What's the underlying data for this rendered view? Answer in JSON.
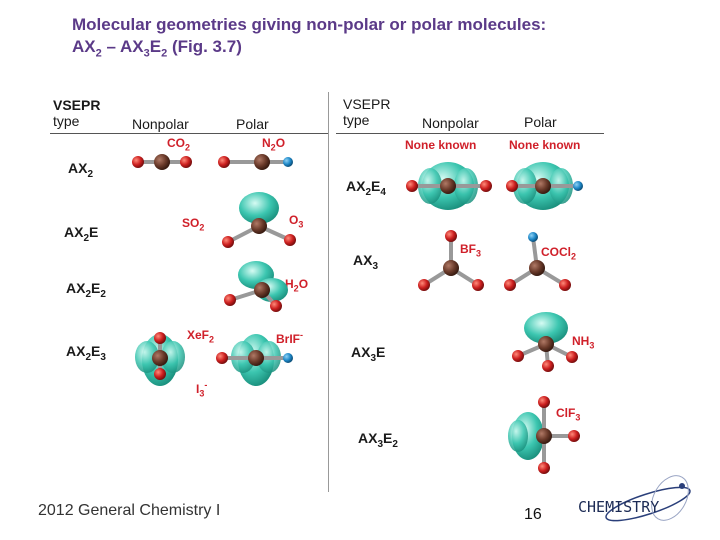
{
  "title": {
    "line1": "Molecular geometries giving non-polar or polar molecules:",
    "l2_a": "AX",
    "l2_a_sub": "2",
    "l2_b": " – AX",
    "l2_b_sub": "3",
    "l2_c": "E",
    "l2_c_sub": "2",
    "l2_d": " (Fig. 3.7)"
  },
  "left_header": {
    "vsepr": "VSEPR",
    "type": "type",
    "nonpolar": "Nonpolar",
    "polar": "Polar"
  },
  "right_header": {
    "vsepr": "VSEPR",
    "type": "type",
    "nonpolar": "Nonpolar",
    "polar": "Polar"
  },
  "left_rows": [
    {
      "t1": "AX",
      "s1": "2",
      "t2": "",
      "s2": ""
    },
    {
      "t1": "AX",
      "s1": "2",
      "t2": "E",
      "s2": ""
    },
    {
      "t1": "AX",
      "s1": "2",
      "t2": "E",
      "s2": "2"
    },
    {
      "t1": "AX",
      "s1": "2",
      "t2": "E",
      "s2": "3"
    }
  ],
  "right_rows": [
    {
      "t1": "AX",
      "s1": "2",
      "t2": "E",
      "s2": "4"
    },
    {
      "t1": "AX",
      "s1": "3",
      "t2": "",
      "s2": ""
    },
    {
      "t1": "AX",
      "s1": "3",
      "t2": "E",
      "s2": ""
    },
    {
      "t1": "AX",
      "s1": "3",
      "t2": "E",
      "s2": "2"
    }
  ],
  "molecules": {
    "co2": {
      "a": "CO",
      "b": "2"
    },
    "n2o": {
      "a": "N",
      "b": "2",
      "c": "O"
    },
    "so2": {
      "a": "SO",
      "b": "2"
    },
    "o3": {
      "a": "O",
      "b": "3"
    },
    "h2o": {
      "a": "H",
      "b": "2",
      "c": "O"
    },
    "xef2": {
      "a": "XeF",
      "b": "2"
    },
    "brif": {
      "a": "BrIF",
      "sup": "-"
    },
    "i3": {
      "a": "I",
      "b": "3",
      "sup": "-"
    },
    "bf3": {
      "a": "BF",
      "b": "3"
    },
    "cocl2": {
      "a": "COCl",
      "b": "2"
    },
    "nh3": {
      "a": "NH",
      "b": "3"
    },
    "clf3": {
      "a": "ClF",
      "b": "3"
    }
  },
  "none_known_1": "None known",
  "none_known_2": "None known",
  "footer": "2012 General Chemistry I",
  "page_number": "16",
  "logo_text": "CHEMISTRY",
  "colors": {
    "title": "#5b3a88",
    "label_red": "#d0202a",
    "atom_red": "#cc1f1f",
    "atom_center": "#6a3a2a",
    "atom_blue": "#1e88c8",
    "lobe": "#3cc6b0"
  }
}
